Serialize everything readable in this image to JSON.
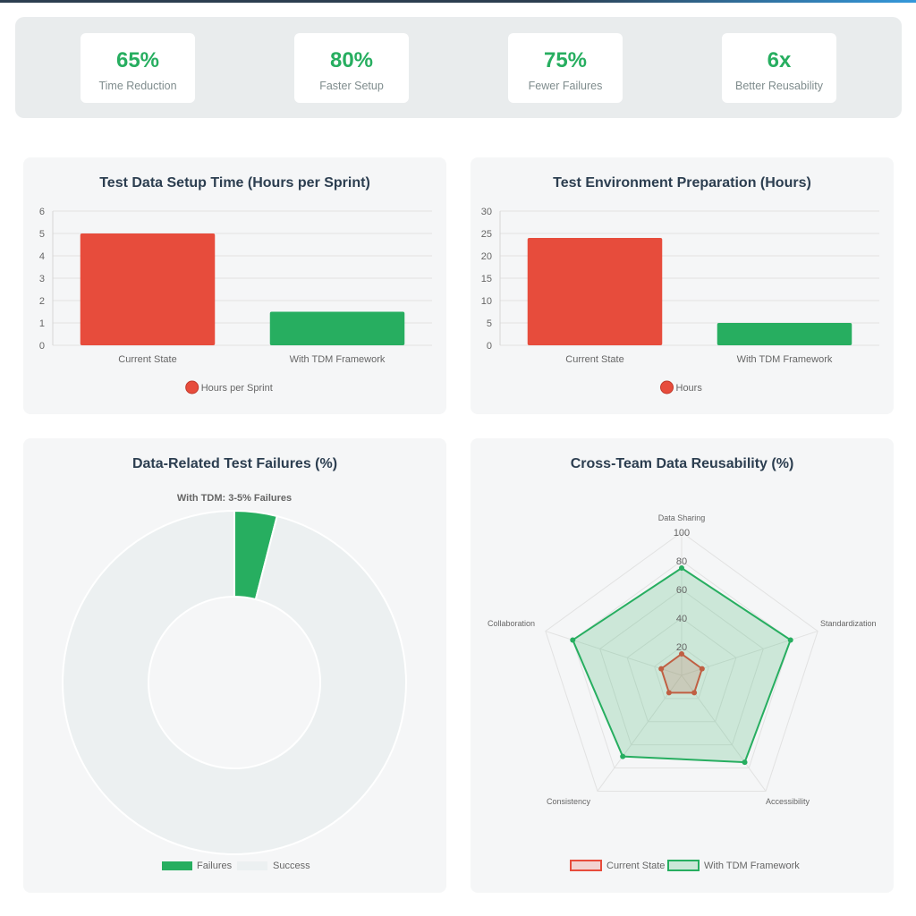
{
  "stats": [
    {
      "value": "65%",
      "label": "Time Reduction"
    },
    {
      "value": "80%",
      "label": "Faster Setup"
    },
    {
      "value": "75%",
      "label": "Fewer Failures"
    },
    {
      "value": "6x",
      "label": "Better Reusability"
    }
  ],
  "colors": {
    "accent": "#27ae60",
    "red": "#e74c3c",
    "green": "#27ae60",
    "success": "#ecf0f1",
    "title": "#2c3e50"
  },
  "chart_data": [
    {
      "type": "bar",
      "title": "Test Data Setup Time (Hours per Sprint)",
      "categories": [
        "Current State",
        "With TDM Framework"
      ],
      "series": [
        {
          "name": "Hours per Sprint",
          "values": [
            5,
            1.5
          ]
        }
      ],
      "ylim": [
        0,
        6
      ],
      "yticks": [
        0,
        1,
        2,
        3,
        4,
        5,
        6
      ],
      "grid": true,
      "legend": "bottom"
    },
    {
      "type": "bar",
      "title": "Test Environment Preparation (Hours)",
      "categories": [
        "Current State",
        "With TDM Framework"
      ],
      "series": [
        {
          "name": "Hours",
          "values": [
            24,
            5
          ]
        }
      ],
      "ylim": [
        0,
        30
      ],
      "yticks": [
        0,
        5,
        10,
        15,
        20,
        25,
        30
      ],
      "grid": true,
      "legend": "bottom"
    },
    {
      "type": "pie",
      "title": "Data-Related Test Failures (%)",
      "subtitle": "With TDM: 3-5% Failures",
      "labels": [
        "Failures",
        "Success"
      ],
      "values": [
        4,
        96
      ],
      "legend": "bottom"
    },
    {
      "type": "radar",
      "title": "Cross-Team Data Reusability (%)",
      "axes": [
        "Data Sharing",
        "Standardization",
        "Accessibility",
        "Consistency",
        "Collaboration"
      ],
      "rlim": [
        0,
        100
      ],
      "rticks": [
        20,
        40,
        60,
        80,
        100
      ],
      "series": [
        {
          "name": "Current State",
          "values": [
            15,
            15,
            15,
            15,
            15
          ]
        },
        {
          "name": "With TDM Framework",
          "values": [
            75,
            80,
            75,
            70,
            80
          ]
        }
      ],
      "legend": "bottom"
    }
  ]
}
